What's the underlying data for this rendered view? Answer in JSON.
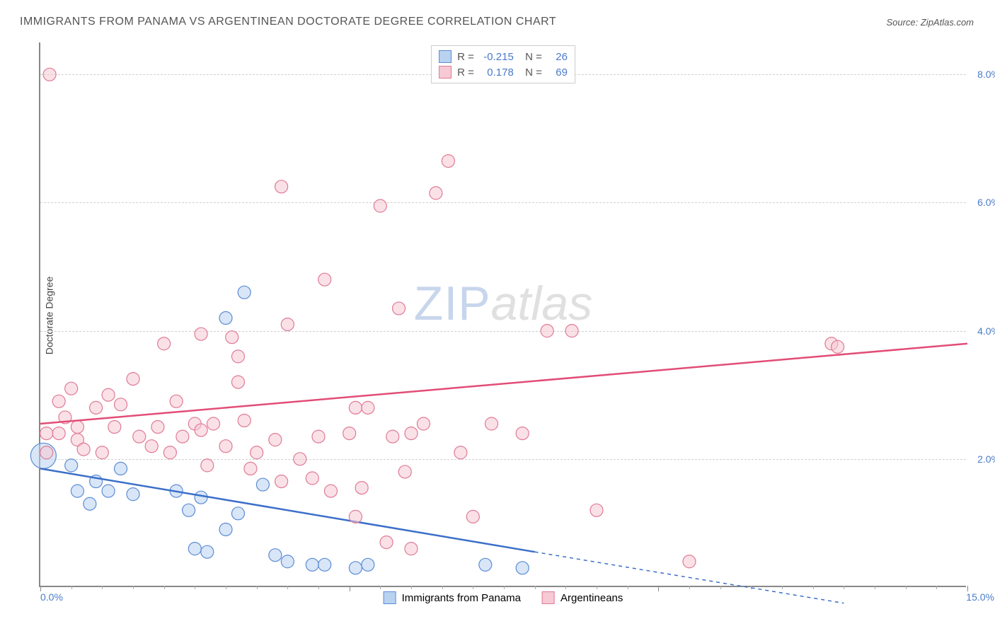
{
  "title": "IMMIGRANTS FROM PANAMA VS ARGENTINEAN DOCTORATE DEGREE CORRELATION CHART",
  "source_label": "Source: ZipAtlas.com",
  "ylabel": "Doctorate Degree",
  "watermark": {
    "part1": "ZIP",
    "part2": "atlas"
  },
  "chart": {
    "type": "scatter",
    "background_color": "#ffffff",
    "grid_color": "#d0d0d0",
    "axis_color": "#888888",
    "xlim": [
      0,
      15
    ],
    "ylim": [
      0,
      8.5
    ],
    "ytick_values": [
      2.0,
      4.0,
      6.0,
      8.0
    ],
    "ytick_labels": [
      "2.0%",
      "4.0%",
      "6.0%",
      "8.0%"
    ],
    "xtick_left": "0.0%",
    "xtick_right": "15.0%",
    "x_major_ticks": [
      0,
      5,
      10,
      15
    ],
    "x_minor_step": 0.5,
    "label_color": "#4a7bc8",
    "label_fontsize": 14,
    "title_fontsize": 16,
    "series": [
      {
        "id": "panama",
        "legend_label": "Immigrants from Panama",
        "fill_color": "#b9d2f0",
        "stroke_color": "#5b8cd6",
        "fill_opacity": 0.55,
        "marker_radius": 9,
        "R": "-0.215",
        "N": "26",
        "trend": {
          "x1": 0,
          "y1": 1.85,
          "x2_solid": 8.0,
          "y2_solid": 0.55,
          "x2_end": 13.0,
          "y2_end": -0.25,
          "stroke_width": 2.5,
          "dash_after_solid": true,
          "color": "#3b6fc9"
        },
        "points": [
          [
            0.05,
            2.05,
            18
          ],
          [
            0.5,
            1.9,
            9
          ],
          [
            0.6,
            1.5,
            9
          ],
          [
            0.8,
            1.3,
            9
          ],
          [
            0.9,
            1.65,
            9
          ],
          [
            1.1,
            1.5,
            9
          ],
          [
            1.3,
            1.85,
            9
          ],
          [
            1.5,
            1.45,
            9
          ],
          [
            2.2,
            1.5,
            9
          ],
          [
            2.4,
            1.2,
            9
          ],
          [
            2.5,
            0.6,
            9
          ],
          [
            2.7,
            0.55,
            9
          ],
          [
            2.6,
            1.4,
            9
          ],
          [
            3.0,
            0.9,
            9
          ],
          [
            3.2,
            1.15,
            9
          ],
          [
            3.3,
            4.6,
            9
          ],
          [
            3.0,
            4.2,
            9
          ],
          [
            3.6,
            1.6,
            9
          ],
          [
            3.8,
            0.5,
            9
          ],
          [
            4.0,
            0.4,
            9
          ],
          [
            4.4,
            0.35,
            9
          ],
          [
            4.6,
            0.35,
            9
          ],
          [
            5.1,
            0.3,
            9
          ],
          [
            5.3,
            0.35,
            9
          ],
          [
            7.2,
            0.35,
            9
          ],
          [
            7.8,
            0.3,
            9
          ]
        ]
      },
      {
        "id": "argentina",
        "legend_label": "Argentineans",
        "fill_color": "#f6c9d4",
        "stroke_color": "#e07a95",
        "fill_opacity": 0.55,
        "marker_radius": 9,
        "R": "0.178",
        "N": "69",
        "trend": {
          "x1": 0,
          "y1": 2.55,
          "x2_solid": 15.0,
          "y2_solid": 3.8,
          "x2_end": 15.0,
          "y2_end": 3.8,
          "stroke_width": 2.5,
          "dash_after_solid": false,
          "color": "#e24d76"
        },
        "points": [
          [
            0.1,
            2.1,
            9
          ],
          [
            0.1,
            2.4,
            9
          ],
          [
            0.3,
            2.9,
            9
          ],
          [
            0.3,
            2.4,
            9
          ],
          [
            0.5,
            3.1,
            9
          ],
          [
            0.6,
            2.3,
            9
          ],
          [
            0.6,
            2.5,
            9
          ],
          [
            0.7,
            2.15,
            9
          ],
          [
            0.9,
            2.8,
            9
          ],
          [
            1.0,
            2.1,
            9
          ],
          [
            1.1,
            3.0,
            9
          ],
          [
            1.2,
            2.5,
            9
          ],
          [
            1.3,
            2.85,
            9
          ],
          [
            1.5,
            3.25,
            9
          ],
          [
            1.6,
            2.35,
            9
          ],
          [
            1.9,
            2.5,
            9
          ],
          [
            2.0,
            3.8,
            9
          ],
          [
            2.1,
            2.1,
            9
          ],
          [
            2.2,
            2.9,
            9
          ],
          [
            2.3,
            2.35,
            9
          ],
          [
            2.5,
            2.55,
            9
          ],
          [
            2.6,
            2.45,
            9
          ],
          [
            2.6,
            3.95,
            9
          ],
          [
            2.8,
            2.55,
            9
          ],
          [
            2.7,
            1.9,
            9
          ],
          [
            3.0,
            2.2,
            9
          ],
          [
            3.1,
            3.9,
            9
          ],
          [
            3.2,
            3.2,
            9
          ],
          [
            3.2,
            3.6,
            9
          ],
          [
            3.3,
            2.6,
            9
          ],
          [
            3.4,
            1.85,
            9
          ],
          [
            3.5,
            2.1,
            9
          ],
          [
            3.8,
            2.3,
            9
          ],
          [
            3.9,
            1.65,
            9
          ],
          [
            3.9,
            6.25,
            9
          ],
          [
            4.0,
            4.1,
            9
          ],
          [
            4.2,
            2.0,
            9
          ],
          [
            4.4,
            1.7,
            9
          ],
          [
            4.5,
            2.35,
            9
          ],
          [
            4.6,
            4.8,
            9
          ],
          [
            4.7,
            1.5,
            9
          ],
          [
            5.0,
            2.4,
            9
          ],
          [
            5.1,
            2.8,
            9
          ],
          [
            5.1,
            1.1,
            9
          ],
          [
            5.2,
            1.55,
            9
          ],
          [
            5.3,
            2.8,
            9
          ],
          [
            5.5,
            5.95,
            9
          ],
          [
            5.6,
            0.7,
            9
          ],
          [
            5.7,
            2.35,
            9
          ],
          [
            5.8,
            4.35,
            9
          ],
          [
            5.9,
            1.8,
            9
          ],
          [
            6.0,
            2.4,
            9
          ],
          [
            6.0,
            0.6,
            9
          ],
          [
            6.2,
            2.55,
            9
          ],
          [
            6.4,
            6.15,
            9
          ],
          [
            6.6,
            6.65,
            9
          ],
          [
            6.8,
            2.1,
            9
          ],
          [
            7.0,
            1.1,
            9
          ],
          [
            7.3,
            2.55,
            9
          ],
          [
            7.8,
            2.4,
            9
          ],
          [
            8.2,
            4.0,
            9
          ],
          [
            8.6,
            4.0,
            9
          ],
          [
            9.0,
            1.2,
            9
          ],
          [
            10.5,
            0.4,
            9
          ],
          [
            12.8,
            3.8,
            9
          ],
          [
            12.9,
            3.75,
            9
          ],
          [
            0.15,
            8.0,
            9
          ],
          [
            0.4,
            2.65,
            9
          ],
          [
            1.8,
            2.2,
            9
          ]
        ]
      }
    ]
  },
  "bottom_legend": [
    {
      "label": "Immigrants from Panama",
      "fill": "#b9d2f0",
      "stroke": "#5b8cd6"
    },
    {
      "label": "Argentineans",
      "fill": "#f6c9d4",
      "stroke": "#e07a95"
    }
  ]
}
